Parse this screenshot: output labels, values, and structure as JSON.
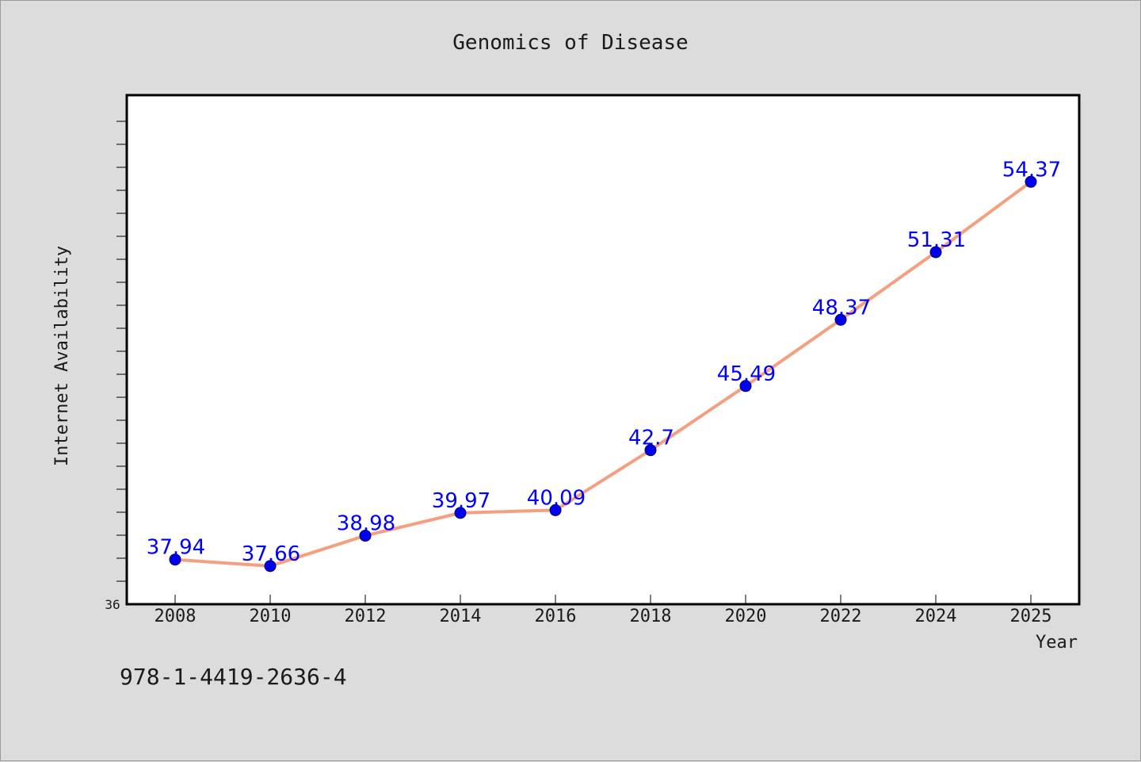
{
  "colors": {
    "background": "#dcdcdc",
    "plot_background": "#ffffff",
    "line": "#f4a080",
    "marker": "#0000ee",
    "data_label": "#0000ff",
    "axis": "#000000"
  },
  "footer": {
    "isbn": "978-1-4419-2636-4"
  },
  "chart_data": {
    "type": "line",
    "title": "Genomics of Disease",
    "xlabel": "Year",
    "ylabel": "Internet Availability",
    "x": [
      "2008",
      "2010",
      "2012",
      "2014",
      "2016",
      "2018",
      "2020",
      "2022",
      "2024",
      "2025"
    ],
    "series": [
      {
        "values": [
          37.94,
          37.66,
          38.98,
          39.97,
          40.09,
          42.7,
          45.49,
          48.37,
          51.31,
          54.37
        ],
        "labels": [
          "37.94",
          "37.66",
          "38.98",
          "39.97",
          "40.09",
          "42.7",
          "45.49",
          "48.37",
          "51.31",
          "54.37"
        ]
      }
    ],
    "ylim": [
      36,
      58
    ],
    "y_tick_labels": [
      "36"
    ],
    "y_minor_step": 1,
    "grid": false,
    "legend": "none"
  }
}
